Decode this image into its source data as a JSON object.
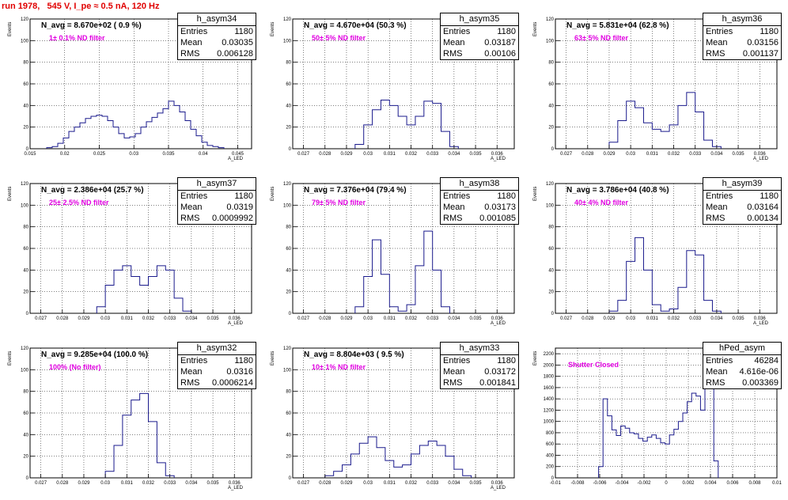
{
  "title": "run 1978,   545 V, I_pe ≈ 0.5 nA, 120 Hz",
  "chart_data": [
    {
      "type": "bar",
      "name": "h_asym34",
      "n_avg_label": "N_avg = 8.670e+02 ( 0.9 %)",
      "filter_label": "1± 0.1% ND filter",
      "stats": {
        "entries": "1180",
        "mean": "0.03035",
        "rms": "0.006128"
      },
      "xlabel": "A_LED",
      "ylabel": "Events",
      "xlim": [
        0.015,
        0.047
      ],
      "ylim": [
        0,
        120
      ],
      "xticks": [
        0.015,
        0.02,
        0.025,
        0.03,
        0.035,
        0.04,
        0.045
      ],
      "xticklabels": [
        "0.015",
        "0.02",
        "0.025",
        "0.03",
        "0.035",
        "0.04",
        "0.045"
      ],
      "yticks": [
        0,
        20,
        40,
        60,
        80,
        100,
        120
      ],
      "x": [
        0.0178,
        0.0186,
        0.0194,
        0.0202,
        0.021,
        0.0218,
        0.0226,
        0.0234,
        0.0242,
        0.025,
        0.0258,
        0.0266,
        0.0274,
        0.0282,
        0.029,
        0.0298,
        0.0306,
        0.0314,
        0.0322,
        0.033,
        0.0338,
        0.0346,
        0.0354,
        0.0362,
        0.037,
        0.0378,
        0.0386,
        0.0394,
        0.0402,
        0.041,
        0.0418,
        0.0426
      ],
      "values": [
        1,
        2,
        5,
        10,
        16,
        20,
        24,
        28,
        30,
        31,
        30,
        26,
        20,
        14,
        10,
        11,
        14,
        20,
        25,
        29,
        33,
        37,
        44,
        40,
        34,
        26,
        18,
        12,
        6,
        3,
        2,
        1
      ]
    },
    {
      "type": "bar",
      "name": "h_asym35",
      "n_avg_label": "N_avg = 4.670e+04 (50.3 %)",
      "filter_label": "50± 5% ND filter",
      "stats": {
        "entries": "1180",
        "mean": "0.03187",
        "rms": "0.00106"
      },
      "xlabel": "A_LED",
      "ylabel": "Events",
      "xlim": [
        0.0265,
        0.0368
      ],
      "ylim": [
        0,
        120
      ],
      "xticks": [
        0.027,
        0.028,
        0.029,
        0.03,
        0.031,
        0.032,
        0.033,
        0.034,
        0.035,
        0.036
      ],
      "xticklabels": [
        "0.027",
        "0.028",
        "0.029",
        "0.03",
        "0.031",
        "0.032",
        "0.033",
        "0.034",
        "0.035",
        "0.036"
      ],
      "yticks": [
        0,
        20,
        40,
        60,
        80,
        100,
        120
      ],
      "x": [
        0.0296,
        0.03,
        0.0304,
        0.0308,
        0.0312,
        0.0316,
        0.032,
        0.0324,
        0.0328,
        0.0332,
        0.0336,
        0.034
      ],
      "values": [
        4,
        22,
        36,
        45,
        40,
        30,
        22,
        30,
        44,
        42,
        16,
        2
      ]
    },
    {
      "type": "bar",
      "name": "h_asym36",
      "n_avg_label": "N_avg = 5.831e+04 (62.8 %)",
      "filter_label": "63± 5% ND filter",
      "stats": {
        "entries": "1180",
        "mean": "0.03156",
        "rms": "0.001137"
      },
      "xlabel": "A_LED",
      "ylabel": "Events",
      "xlim": [
        0.0265,
        0.0368
      ],
      "ylim": [
        0,
        120
      ],
      "xticks": [
        0.027,
        0.028,
        0.029,
        0.03,
        0.031,
        0.032,
        0.033,
        0.034,
        0.035,
        0.036
      ],
      "xticklabels": [
        "0.027",
        "0.028",
        "0.029",
        "0.03",
        "0.031",
        "0.032",
        "0.033",
        "0.034",
        "0.035",
        "0.036"
      ],
      "yticks": [
        0,
        20,
        40,
        60,
        80,
        100,
        120
      ],
      "x": [
        0.0292,
        0.0296,
        0.03,
        0.0304,
        0.0308,
        0.0312,
        0.0316,
        0.032,
        0.0324,
        0.0328,
        0.0332,
        0.0336,
        0.034
      ],
      "values": [
        6,
        26,
        44,
        38,
        24,
        18,
        16,
        22,
        40,
        52,
        34,
        8,
        2
      ]
    },
    {
      "type": "bar",
      "name": "h_asym37",
      "n_avg_label": "N_avg = 2.386e+04 (25.7 %)",
      "filter_label": "25± 2.5% ND filter",
      "stats": {
        "entries": "1180",
        "mean": "0.0319",
        "rms": "0.0009992"
      },
      "xlabel": "A_LED",
      "ylabel": "Events",
      "xlim": [
        0.0265,
        0.0368
      ],
      "ylim": [
        0,
        120
      ],
      "xticks": [
        0.027,
        0.028,
        0.029,
        0.03,
        0.031,
        0.032,
        0.033,
        0.034,
        0.035,
        0.036
      ],
      "xticklabels": [
        "0.027",
        "0.028",
        "0.029",
        "0.03",
        "0.031",
        "0.032",
        "0.033",
        "0.034",
        "0.035",
        "0.036"
      ],
      "yticks": [
        0,
        20,
        40,
        60,
        80,
        100,
        120
      ],
      "x": [
        0.0298,
        0.0302,
        0.0306,
        0.031,
        0.0314,
        0.0318,
        0.0322,
        0.0326,
        0.033,
        0.0334,
        0.0338
      ],
      "values": [
        6,
        26,
        40,
        44,
        34,
        26,
        34,
        44,
        40,
        14,
        2
      ]
    },
    {
      "type": "bar",
      "name": "h_asym38",
      "n_avg_label": "N_avg = 7.376e+04 (79.4 %)",
      "filter_label": "79± 5% ND filter",
      "stats": {
        "entries": "1180",
        "mean": "0.03173",
        "rms": "0.001085"
      },
      "xlabel": "A_LED",
      "ylabel": "Events",
      "xlim": [
        0.0265,
        0.0368
      ],
      "ylim": [
        0,
        120
      ],
      "xticks": [
        0.027,
        0.028,
        0.029,
        0.03,
        0.031,
        0.032,
        0.033,
        0.034,
        0.035,
        0.036
      ],
      "xticklabels": [
        "0.027",
        "0.028",
        "0.029",
        "0.03",
        "0.031",
        "0.032",
        "0.033",
        "0.034",
        "0.035",
        "0.036"
      ],
      "yticks": [
        0,
        20,
        40,
        60,
        80,
        100,
        120
      ],
      "x": [
        0.0296,
        0.03,
        0.0304,
        0.0308,
        0.0312,
        0.0316,
        0.032,
        0.0324,
        0.0328,
        0.0332,
        0.0336
      ],
      "values": [
        6,
        34,
        68,
        36,
        6,
        2,
        8,
        44,
        76,
        40,
        6
      ]
    },
    {
      "type": "bar",
      "name": "h_asym39",
      "n_avg_label": "N_avg = 3.786e+04 (40.8 %)",
      "filter_label": "40± 4% ND filter",
      "stats": {
        "entries": "1180",
        "mean": "0.03164",
        "rms": "0.00134"
      },
      "xlabel": "A_LED",
      "ylabel": "Events",
      "xlim": [
        0.0265,
        0.0368
      ],
      "ylim": [
        0,
        120
      ],
      "xticks": [
        0.027,
        0.028,
        0.029,
        0.03,
        0.031,
        0.032,
        0.033,
        0.034,
        0.035,
        0.036
      ],
      "xticklabels": [
        "0.027",
        "0.028",
        "0.029",
        "0.03",
        "0.031",
        "0.032",
        "0.033",
        "0.034",
        "0.035",
        "0.036"
      ],
      "yticks": [
        0,
        20,
        40,
        60,
        80,
        100,
        120
      ],
      "x": [
        0.0292,
        0.0296,
        0.03,
        0.0304,
        0.0308,
        0.0312,
        0.0316,
        0.032,
        0.0324,
        0.0328,
        0.0332,
        0.0336,
        0.034
      ],
      "values": [
        2,
        12,
        48,
        70,
        40,
        8,
        2,
        4,
        24,
        58,
        54,
        12,
        2
      ]
    },
    {
      "type": "bar",
      "name": "h_asym32",
      "n_avg_label": "N_avg = 9.285e+04 (100.0 %)",
      "filter_label": "100% (No filter)",
      "stats": {
        "entries": "1180",
        "mean": "0.0316",
        "rms": "0.0006214"
      },
      "xlabel": "A_LED",
      "ylabel": "Events",
      "xlim": [
        0.0265,
        0.0368
      ],
      "ylim": [
        0,
        120
      ],
      "xticks": [
        0.027,
        0.028,
        0.029,
        0.03,
        0.031,
        0.032,
        0.033,
        0.034,
        0.035,
        0.036
      ],
      "xticklabels": [
        "0.027",
        "0.028",
        "0.029",
        "0.03",
        "0.031",
        "0.032",
        "0.033",
        "0.034",
        "0.035",
        "0.036"
      ],
      "yticks": [
        0,
        20,
        40,
        60,
        80,
        100,
        120
      ],
      "x": [
        0.0302,
        0.0306,
        0.031,
        0.0314,
        0.0318,
        0.0322,
        0.0326,
        0.033
      ],
      "values": [
        6,
        30,
        58,
        72,
        78,
        52,
        14,
        2
      ]
    },
    {
      "type": "bar",
      "name": "h_asym33",
      "n_avg_label": "N_avg = 8.804e+03 ( 9.5 %)",
      "filter_label": "10± 1% ND filter",
      "stats": {
        "entries": "1180",
        "mean": "0.03172",
        "rms": "0.001841"
      },
      "xlabel": "A_LED",
      "ylabel": "Events",
      "xlim": [
        0.0265,
        0.0368
      ],
      "ylim": [
        0,
        120
      ],
      "xticks": [
        0.027,
        0.028,
        0.029,
        0.03,
        0.031,
        0.032,
        0.033,
        0.034,
        0.035,
        0.036
      ],
      "xticklabels": [
        "0.027",
        "0.028",
        "0.029",
        "0.03",
        "0.031",
        "0.032",
        "0.033",
        "0.034",
        "0.035",
        "0.036"
      ],
      "yticks": [
        0,
        20,
        40,
        60,
        80,
        100,
        120
      ],
      "x": [
        0.0282,
        0.0286,
        0.029,
        0.0294,
        0.0298,
        0.0302,
        0.0306,
        0.031,
        0.0314,
        0.0318,
        0.0322,
        0.0326,
        0.033,
        0.0334,
        0.0338,
        0.0342,
        0.0346
      ],
      "values": [
        2,
        6,
        12,
        22,
        32,
        38,
        28,
        16,
        10,
        12,
        22,
        30,
        34,
        30,
        20,
        8,
        2
      ]
    },
    {
      "type": "bar",
      "name": "hPed_asym",
      "n_avg_label": "",
      "filter_label": "Shutter Closed",
      "stats": {
        "entries": "46284",
        "mean": "4.616e-06",
        "rms": "0.003369"
      },
      "xlabel": "",
      "ylabel": "Events",
      "xlim": [
        -0.01,
        0.01
      ],
      "ylim": [
        0,
        2300
      ],
      "xticks": [
        -0.01,
        -0.008,
        -0.006,
        -0.004,
        -0.002,
        0,
        0.002,
        0.004,
        0.006,
        0.008,
        0.01
      ],
      "xticklabels": [
        "-0.01",
        "-0.008",
        "-0.006",
        "-0.004",
        "-0.002",
        "0",
        "0.002",
        "0.004",
        "0.006",
        "0.008",
        "0.01"
      ],
      "yticks": [
        0,
        200,
        400,
        600,
        800,
        1000,
        1200,
        1400,
        1600,
        1800,
        2000,
        2200
      ],
      "x": [
        -0.0059,
        -0.0055,
        -0.0051,
        -0.0047,
        -0.0043,
        -0.0039,
        -0.0035,
        -0.0031,
        -0.0027,
        -0.0023,
        -0.0019,
        -0.0015,
        -0.0011,
        -0.0007,
        -0.0003,
        0.0001,
        0.0005,
        0.0009,
        0.0013,
        0.0017,
        0.0021,
        0.0025,
        0.0029,
        0.0033,
        0.0037,
        0.0041,
        0.0045
      ],
      "values": [
        200,
        1400,
        1100,
        850,
        750,
        920,
        880,
        800,
        780,
        700,
        650,
        720,
        760,
        700,
        620,
        600,
        760,
        860,
        1000,
        1150,
        1350,
        1500,
        1450,
        1200,
        1700,
        2200,
        300
      ]
    }
  ]
}
